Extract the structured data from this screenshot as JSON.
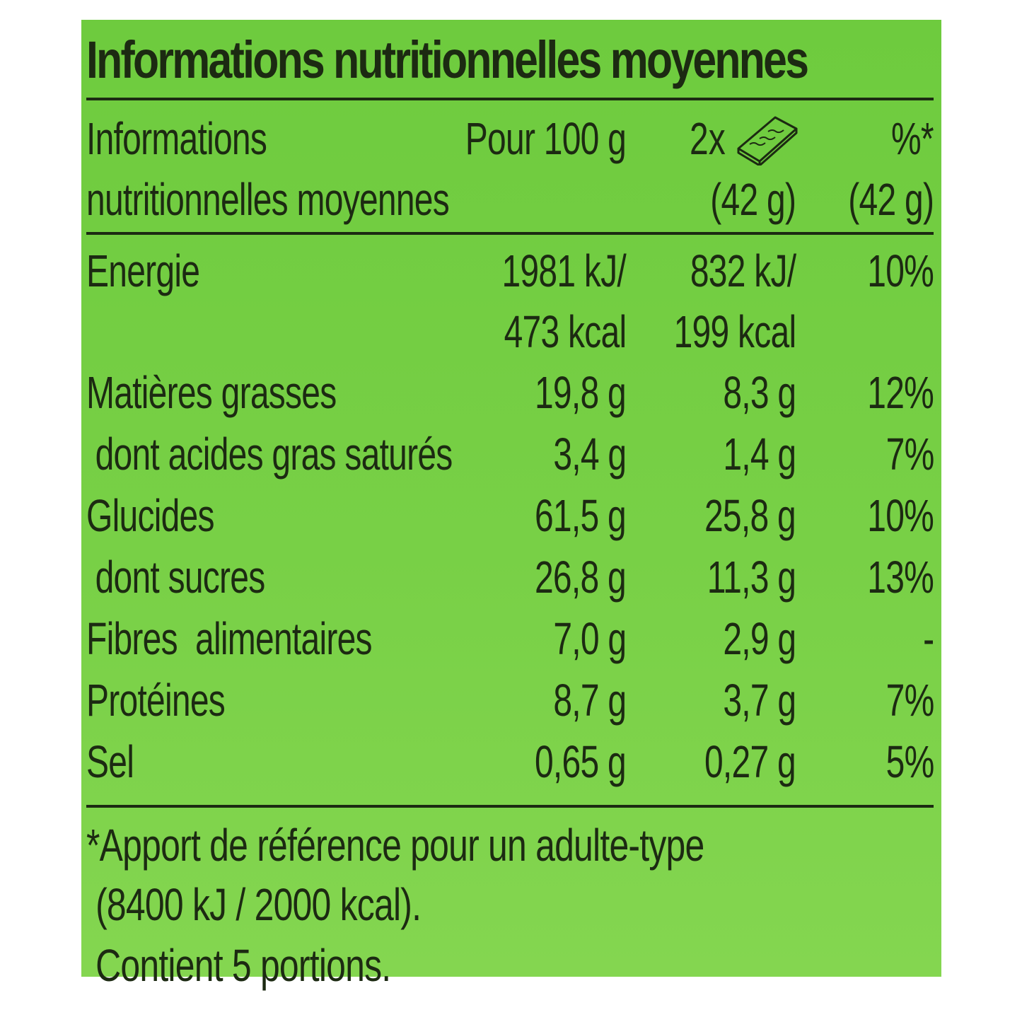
{
  "title": "Informations nutritionnelles moyennes",
  "header": {
    "label_line1": "Informations",
    "label_line2": "nutritionnelles moyennes",
    "per100": "Pour 100 g",
    "portion_prefix": "2x",
    "portion_icon": "biscuit-bar-icon",
    "portion_weight": "(42 g)",
    "pct": "%*",
    "pct_weight": "(42 g)"
  },
  "rows": [
    {
      "label": "Energie",
      "per100": "1981 kJ/",
      "portion": "832 kJ/",
      "pct": "10%"
    },
    {
      "label": "",
      "per100": "473 kcal",
      "portion": "199 kcal",
      "pct": ""
    },
    {
      "label": "Matières grasses",
      "per100": "19,8 g",
      "portion": "8,3 g",
      "pct": "12%"
    },
    {
      "label": " dont acides gras saturés",
      "per100": "3,4 g",
      "portion": "1,4 g",
      "pct": "7%"
    },
    {
      "label": "Glucides",
      "per100": "61,5 g",
      "portion": "25,8 g",
      "pct": "10%"
    },
    {
      "label": " dont sucres",
      "per100": "26,8 g",
      "portion": "11,3 g",
      "pct": "13%"
    },
    {
      "label": "Fibres  alimentaires",
      "per100": "7,0 g",
      "portion": "2,9 g",
      "pct": "-"
    },
    {
      "label": "Protéines",
      "per100": "8,7 g",
      "portion": "3,7 g",
      "pct": "7%"
    },
    {
      "label": "Sel",
      "per100": "0,65 g",
      "portion": "0,27 g",
      "pct": "5%"
    }
  ],
  "footnote": {
    "line1": "*Apport de référence pour un adulte-type",
    "line2": " (8400 kJ / 2000 kcal).",
    "line3": " Contient 5 portions."
  }
}
